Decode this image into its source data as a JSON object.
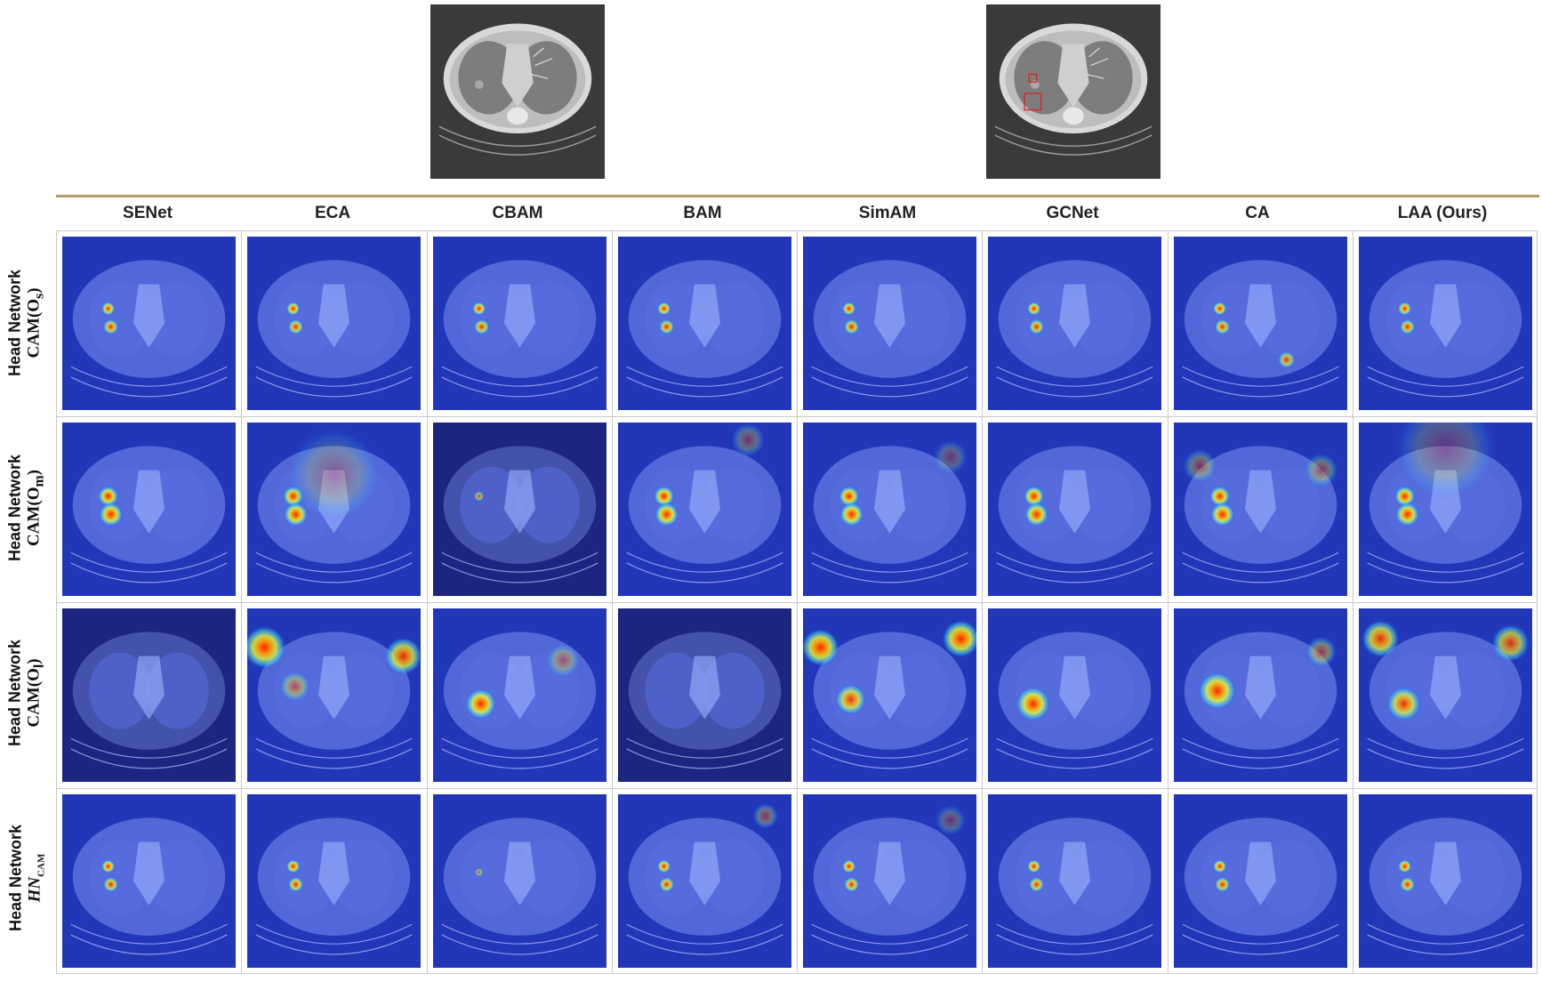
{
  "columns": [
    "SENet",
    "ECA",
    "CBAM",
    "BAM",
    "SimAM",
    "GCNet",
    "CA",
    "LAA (Ours)"
  ],
  "rows": [
    {
      "network": "Head Network",
      "map": "CAM(O",
      "sub": "s",
      "close": ")"
    },
    {
      "network": "Head Network",
      "map": "CAM(O",
      "sub": "m",
      "close": ")"
    },
    {
      "network": "Head Network",
      "map": "CAM(O",
      "sub": "l",
      "close": ")"
    },
    {
      "network": "Head Network",
      "map": "HN",
      "sub": "CAM",
      "close": ""
    }
  ],
  "colors": {
    "divider": "#b89a6a",
    "heat_low": "#1f2fae",
    "heat_high": "#ff2a00",
    "ct_background": "#3a3a3a",
    "annotation_box": "#e02020"
  }
}
